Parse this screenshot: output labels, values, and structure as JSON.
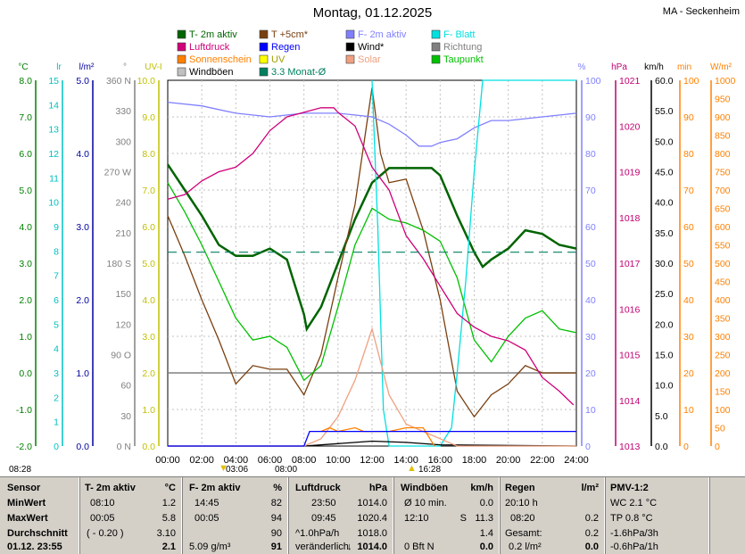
{
  "title": "Montag, 01.12.2025",
  "location": "MA - Seckenheim",
  "legend": [
    {
      "label": "T- 2m aktiv",
      "color": "#006400"
    },
    {
      "label": "T +5cm*",
      "color": "#7a3f0f"
    },
    {
      "label": "F- 2m aktiv",
      "color": "#8080ff"
    },
    {
      "label": "F- Blatt",
      "color": "#00e0e0"
    },
    {
      "label": "Luftdruck",
      "color": "#d0007a"
    },
    {
      "label": "Regen",
      "color": "#0000ff"
    },
    {
      "label": "Wind*",
      "color": "#000000"
    },
    {
      "label": "Richtung",
      "color": "#808080"
    },
    {
      "label": "Sonnenschein",
      "color": "#ff8000"
    },
    {
      "label": "UV",
      "color": "#ffff00"
    },
    {
      "label": "Solar",
      "color": "#f0a080"
    },
    {
      "label": "Taupunkt",
      "color": "#00c000"
    },
    {
      "label": "Windböen",
      "color": "#c0c0c0"
    },
    {
      "label": "3.3 Monat-Ø",
      "color": "#008060"
    }
  ],
  "axes": {
    "left": [
      {
        "unit": "°C",
        "color": "#008000",
        "ticks": [
          "8.0",
          "7.0",
          "6.0",
          "5.0",
          "4.0",
          "3.0",
          "2.0",
          "1.0",
          "0.0",
          "-1.0",
          "-2.0"
        ]
      },
      {
        "unit": "lr",
        "color": "#00c0c0",
        "ticks": [
          "15",
          "14",
          "13",
          "12",
          "11",
          "10",
          "9",
          "8",
          "7",
          "6",
          "5",
          "4",
          "3",
          "2",
          "1",
          "0"
        ]
      },
      {
        "unit": "l/m²",
        "color": "#0000a0",
        "ticks": [
          "5.0",
          "4.0",
          "3.0",
          "2.0",
          "1.0",
          "0.0"
        ]
      },
      {
        "unit": "°",
        "color": "#808080",
        "ticks": [
          "360 N",
          "330",
          "300",
          "270 W",
          "240",
          "210",
          "180 S",
          "150",
          "120",
          "90  O",
          "60",
          "30",
          "0  N"
        ]
      },
      {
        "unit": "UV-I",
        "color": "#c0c000",
        "ticks": [
          "10.0",
          "9.0",
          "8.0",
          "7.0",
          "6.0",
          "5.0",
          "4.0",
          "3.0",
          "2.0",
          "1.0",
          "0.0"
        ]
      }
    ],
    "right": [
      {
        "unit": "%",
        "color": "#8080ff",
        "ticks": [
          "100",
          "90",
          "80",
          "70",
          "60",
          "50",
          "40",
          "30",
          "20",
          "10",
          "0"
        ]
      },
      {
        "unit": "hPa",
        "color": "#c00070",
        "ticks": [
          "1021",
          "1020",
          "1019",
          "1018",
          "1017",
          "1016",
          "1015",
          "1014",
          "1013"
        ]
      },
      {
        "unit": "km/h",
        "color": "#000000",
        "ticks": [
          "60.0",
          "55.0",
          "50.0",
          "45.0",
          "40.0",
          "35.0",
          "30.0",
          "25.0",
          "20.0",
          "15.0",
          "10.0",
          "5.0",
          "0.0"
        ]
      },
      {
        "unit": "min",
        "color": "#ff8000",
        "ticks": [
          "100",
          "90",
          "80",
          "70",
          "60",
          "50",
          "40",
          "30",
          "20",
          "10",
          "0"
        ]
      },
      {
        "unit": "W/m²",
        "color": "#ff8000",
        "ticks": [
          "1000",
          "950",
          "900",
          "850",
          "800",
          "750",
          "700",
          "650",
          "600",
          "550",
          "500",
          "450",
          "400",
          "350",
          "300",
          "250",
          "200",
          "150",
          "100",
          "50",
          "0"
        ]
      }
    ],
    "x_ticks": [
      "00:00",
      "02:00",
      "04:00",
      "06:00",
      "08:00",
      "10:00",
      "12:00",
      "14:00",
      "16:00",
      "18:00",
      "20:00",
      "22:00",
      "24:00"
    ]
  },
  "sun_events": {
    "row1": [
      "08:28",
      "03:06",
      "16:28"
    ],
    "row2": [
      "08:00",
      "16:28"
    ]
  },
  "chart_data": {
    "type": "line",
    "x_range": [
      "00:00",
      "24:00"
    ],
    "ylim_temp": [
      -2.0,
      8.0
    ],
    "grid": true,
    "series": [
      {
        "name": "T- 2m aktiv",
        "unit": "°C",
        "x": [
          "00:00",
          "01:00",
          "02:00",
          "03:00",
          "04:00",
          "05:00",
          "06:00",
          "07:00",
          "08:00",
          "08:10",
          "09:00",
          "10:00",
          "11:00",
          "12:00",
          "13:00",
          "14:00",
          "15:00",
          "15:30",
          "16:00",
          "17:00",
          "18:00",
          "18:30",
          "19:00",
          "20:00",
          "21:00",
          "22:00",
          "23:00",
          "24:00"
        ],
        "y": [
          5.7,
          5.0,
          4.3,
          3.5,
          3.2,
          3.2,
          3.4,
          3.1,
          1.6,
          1.2,
          1.8,
          3.0,
          4.2,
          5.2,
          5.6,
          5.6,
          5.6,
          5.6,
          5.4,
          4.3,
          3.3,
          2.9,
          3.1,
          3.4,
          3.9,
          3.8,
          3.5,
          3.4
        ]
      },
      {
        "name": "T +5cm*",
        "unit": "°C",
        "x": [
          "00:00",
          "01:00",
          "02:00",
          "03:00",
          "04:00",
          "05:00",
          "06:00",
          "07:00",
          "08:00",
          "09:00",
          "10:00",
          "11:00",
          "12:00",
          "12:30",
          "13:00",
          "14:00",
          "15:00",
          "16:00",
          "17:00",
          "18:00",
          "19:00",
          "20:00",
          "21:00",
          "22:00",
          "24:00"
        ],
        "y": [
          4.3,
          3.2,
          2.0,
          0.9,
          -0.3,
          0.2,
          0.1,
          0.1,
          -0.6,
          0.5,
          2.6,
          4.6,
          7.8,
          6.0,
          5.2,
          5.3,
          3.9,
          2.0,
          -0.5,
          -1.2,
          -0.6,
          -0.3,
          0.2,
          0.0,
          0.0
        ]
      },
      {
        "name": "Taupunkt",
        "unit": "°C",
        "x": [
          "00:00",
          "01:00",
          "02:00",
          "03:00",
          "04:00",
          "05:00",
          "06:00",
          "07:00",
          "08:00",
          "09:00",
          "10:00",
          "11:00",
          "12:00",
          "13:00",
          "14:00",
          "15:00",
          "16:00",
          "17:00",
          "18:00",
          "19:00",
          "20:00",
          "21:00",
          "22:00",
          "23:00",
          "24:00"
        ],
        "y": [
          5.2,
          4.4,
          3.5,
          2.5,
          1.5,
          0.9,
          1.0,
          0.7,
          -0.2,
          0.2,
          1.8,
          3.5,
          4.5,
          4.2,
          4.1,
          3.9,
          3.6,
          2.6,
          0.9,
          0.3,
          1.0,
          1.5,
          1.7,
          1.2,
          1.1
        ]
      },
      {
        "name": "F- 2m aktiv",
        "unit": "%",
        "x": [
          "00:00",
          "02:00",
          "04:00",
          "06:00",
          "08:00",
          "10:00",
          "12:00",
          "13:00",
          "14:00",
          "14:45",
          "15:30",
          "16:00",
          "17:00",
          "18:00",
          "19:00",
          "20:00",
          "22:00",
          "24:00"
        ],
        "y": [
          94,
          93,
          91,
          90,
          91,
          91,
          90,
          88,
          85,
          82,
          82,
          83,
          84,
          87,
          89,
          89,
          90,
          91
        ]
      },
      {
        "name": "F- Blatt",
        "unit": "%",
        "x": [
          "12:00",
          "12:20",
          "12:40",
          "13:00",
          "16:00",
          "16:40",
          "17:00",
          "17:30",
          "18:00",
          "18:30",
          "24:00"
        ],
        "y": [
          100,
          60,
          10,
          0,
          0,
          5,
          20,
          45,
          75,
          100,
          100
        ]
      },
      {
        "name": "Luftdruck",
        "unit": "hPa",
        "x": [
          "00:00",
          "01:00",
          "02:00",
          "03:00",
          "04:00",
          "05:00",
          "06:00",
          "07:00",
          "08:00",
          "09:00",
          "09:45",
          "10:00",
          "11:00",
          "12:00",
          "13:00",
          "14:00",
          "15:00",
          "16:00",
          "17:00",
          "18:00",
          "19:00",
          "20:00",
          "21:00",
          "22:00",
          "23:00",
          "23:50"
        ],
        "y": [
          1018.4,
          1018.5,
          1018.8,
          1019.0,
          1019.1,
          1019.4,
          1019.9,
          1020.2,
          1020.3,
          1020.4,
          1020.4,
          1020.3,
          1020.0,
          1019.1,
          1018.6,
          1017.6,
          1017.1,
          1016.5,
          1015.9,
          1015.6,
          1015.4,
          1015.3,
          1015.1,
          1014.5,
          1014.2,
          1013.9
        ]
      },
      {
        "name": "3.3 Monat-Ø",
        "unit": "°C",
        "x": [
          "00:00",
          "24:00"
        ],
        "y": [
          3.3,
          3.3
        ]
      },
      {
        "name": "Wind*",
        "unit": "km/h",
        "x": [
          "00:00",
          "08:00",
          "10:00",
          "12:00",
          "14:00",
          "16:00",
          "24:00"
        ],
        "y": [
          0,
          0,
          0.4,
          0.8,
          0.6,
          0.2,
          0
        ]
      },
      {
        "name": "Solar",
        "unit": "W/m²",
        "x": [
          "00:00",
          "08:00",
          "09:00",
          "10:00",
          "11:00",
          "11:30",
          "12:00",
          "13:00",
          "14:00",
          "15:00",
          "16:00",
          "17:00",
          "24:00"
        ],
        "y": [
          0,
          0,
          20,
          80,
          180,
          250,
          320,
          140,
          60,
          40,
          20,
          0,
          0
        ]
      },
      {
        "name": "Sonnenschein",
        "unit": "min",
        "x": [
          "09:00",
          "09:30",
          "10:00",
          "11:00",
          "11:30",
          "13:00",
          "14:00",
          "15:00",
          "15:40"
        ],
        "y": [
          4,
          5,
          4,
          5,
          4,
          4,
          5,
          5,
          0
        ]
      },
      {
        "name": "Regen",
        "unit": "l/m²",
        "x": [
          "00:00",
          "08:00",
          "08:20",
          "24:00"
        ],
        "y": [
          0,
          0,
          0.2,
          0.2
        ]
      }
    ]
  },
  "stats": {
    "sensor": {
      "header": "Sensor",
      "rows": [
        "MinWert",
        "MaxWert",
        "Durchschnitt"
      ],
      "date": "01.12. 23:55"
    },
    "t2m": {
      "header": "T- 2m aktiv",
      "unit": "°C",
      "min_time": "08:10",
      "min_val": "1.2",
      "max_time": "00:05",
      "max_val": "5.8",
      "avg_note": "( - 0.20 )",
      "avg_val": "3.10",
      "current": "2.1"
    },
    "f2m": {
      "header": "F- 2m aktiv",
      "unit": "%",
      "min_time": "14:45",
      "min_val": "82",
      "max_time": "00:05",
      "max_val": "94",
      "avg_val": "90",
      "abs": "5.09 g/m³",
      "current": "91"
    },
    "pressure": {
      "header": "Luftdruck",
      "unit": "hPa",
      "min_time": "23:50",
      "min_val": "1014.0",
      "max_time": "09:45",
      "max_val": "1020.4",
      "trend": "^1.0hPa/h",
      "avg_val": "1018.0",
      "forecast": "veränderlich",
      "current": "1014.0"
    },
    "gusts": {
      "header": "Windböen",
      "unit": "km/h",
      "min_label": "Ø 10 min.",
      "min_val": "0.0",
      "max_time": "12:10",
      "max_dir": "S",
      "max_val": "11.3",
      "avg_val": "1.4",
      "current_label": "0 Bft N",
      "current": "0.0"
    },
    "rain": {
      "header": "Regen",
      "unit": "l/m²",
      "row1_time": "20:10 h",
      "row2_time": "08:20",
      "row2_val": "0.2",
      "total_label": "Gesamt:",
      "total_val": "0.2",
      "rate": "0.2 l/m²",
      "current": "0.0"
    },
    "pmv": {
      "header": "PMV-1:2",
      "r1": "WC 2.1 °C",
      "r2": "TP 0.8 °C",
      "r3": "-1.6hPa/3h",
      "r4": "-0.6hPa/1h"
    }
  }
}
